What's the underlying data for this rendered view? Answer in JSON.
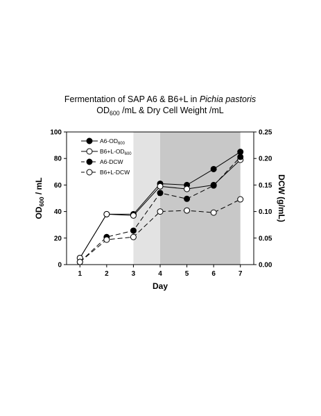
{
  "chart_data": {
    "type": "line",
    "title_line1_pre": "Fermentation of SAP A6 & B6+L in ",
    "title_line1_italic": "Pichia pastoris",
    "title_line2_a": "OD",
    "title_line2_sub": "600",
    "title_line2_b": " /mL & Dry Cell Weight /mL",
    "xlabel": "Day",
    "ylabel_left_a": "OD",
    "ylabel_left_sub": "600",
    "ylabel_left_b": " / mL",
    "ylabel_right": "DCW (g/mL)",
    "x": [
      1,
      2,
      3,
      4,
      5,
      6,
      7
    ],
    "xlim": [
      0.5,
      7.5
    ],
    "ylim_left": [
      0,
      100
    ],
    "ylim_right": [
      0,
      0.25
    ],
    "x_ticks": [
      "1",
      "2",
      "3",
      "4",
      "5",
      "6",
      "7"
    ],
    "y_ticks_left": [
      "0",
      "20",
      "40",
      "60",
      "80",
      "100"
    ],
    "y_ticks_right": [
      "0.00",
      "0.05",
      "0.10",
      "0.15",
      "0.20",
      "0.25"
    ],
    "shaded_regions": [
      {
        "x_start": 3,
        "x_end": 4,
        "color": "#e3e3e3"
      },
      {
        "x_start": 4,
        "x_end": 7,
        "color": "#c8c8c8"
      }
    ],
    "series": [
      {
        "name": "A6-OD",
        "name_sub": "600",
        "axis": "left",
        "marker": "filled",
        "dash": "solid",
        "values": [
          5,
          38,
          38,
          61,
          60,
          72,
          85
        ]
      },
      {
        "name": "B6+L-OD",
        "name_sub": "600",
        "axis": "left",
        "marker": "open",
        "dash": "solid",
        "values": [
          5,
          38,
          37,
          59,
          57,
          60,
          79
        ]
      },
      {
        "name": "A6-DCW",
        "name_sub": "",
        "axis": "right",
        "marker": "filled",
        "dash": "dashed",
        "values": [
          0.005,
          0.052,
          0.064,
          0.135,
          0.124,
          0.149,
          0.203
        ]
      },
      {
        "name": "B6+L-DCW",
        "name_sub": "",
        "axis": "right",
        "marker": "open",
        "dash": "dashed",
        "values": [
          0.005,
          0.047,
          0.052,
          0.1,
          0.102,
          0.098,
          0.123
        ]
      }
    ],
    "legend_placement": "top-left",
    "grid": false
  }
}
